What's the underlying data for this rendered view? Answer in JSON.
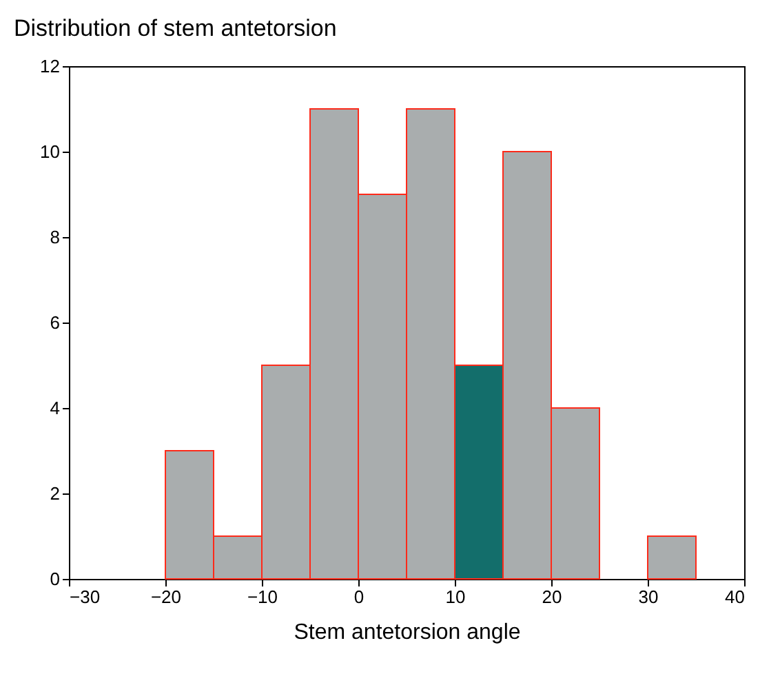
{
  "chart_data": {
    "type": "histogram",
    "title": "Distribution of stem antetorsion",
    "xlabel": "Stem antetorsion angle",
    "bins": [
      -20,
      -15,
      -10,
      -5,
      0,
      5,
      10,
      15,
      20,
      25,
      30,
      35
    ],
    "values": [
      3,
      1,
      5,
      11,
      9,
      11,
      5,
      10,
      4,
      0,
      1
    ],
    "colors": [
      "#a9adae",
      "#a9adae",
      "#a9adae",
      "#a9adae",
      "#a9adae",
      "#a9adae",
      "#136e6b",
      "#a9adae",
      "#a9adae",
      "#a9adae",
      "#a9adae"
    ],
    "xlim": [
      -30,
      40
    ],
    "xticks": [
      -30,
      -20,
      -10,
      0,
      10,
      20,
      30,
      40
    ],
    "ylim": [
      0,
      12
    ],
    "yticks": [
      0,
      2,
      4,
      6,
      8,
      10,
      12
    ],
    "grid": false
  }
}
